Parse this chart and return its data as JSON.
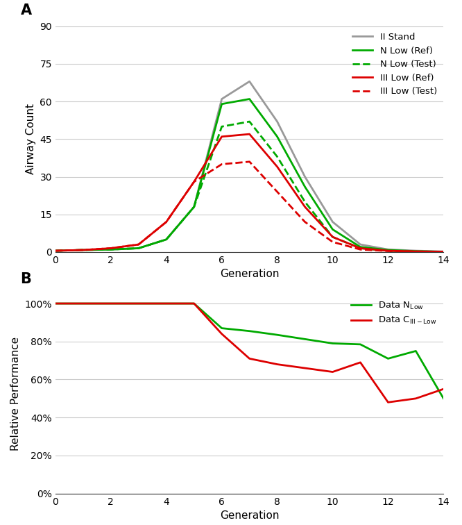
{
  "panel_A": {
    "title": "A",
    "ylabel": "Airway Count",
    "xlabel": "Generation",
    "xlim": [
      0,
      14
    ],
    "ylim": [
      0,
      90
    ],
    "yticks": [
      0,
      15,
      30,
      45,
      60,
      75,
      90
    ],
    "xticks": [
      0,
      2,
      4,
      6,
      8,
      10,
      12,
      14
    ],
    "series": {
      "II_Stand": {
        "x": [
          0,
          1,
          2,
          3,
          4,
          5,
          6,
          7,
          8,
          9,
          10,
          11,
          12,
          13,
          14
        ],
        "y": [
          0.5,
          0.8,
          1.0,
          1.5,
          5,
          18,
          61,
          68,
          52,
          30,
          12,
          3,
          1,
          0.5,
          0.2
        ],
        "color": "#999999",
        "linestyle": "solid",
        "linewidth": 2.0,
        "label": "II Stand"
      },
      "N_Low_Ref": {
        "x": [
          0,
          1,
          2,
          3,
          4,
          5,
          6,
          7,
          8,
          9,
          10,
          11,
          12,
          13,
          14
        ],
        "y": [
          0.5,
          0.8,
          1.0,
          1.5,
          5,
          18,
          59,
          61,
          46,
          26,
          9,
          2,
          0.8,
          0.3,
          0.1
        ],
        "color": "#00aa00",
        "linestyle": "solid",
        "linewidth": 2.0,
        "label": "N Low (Ref)"
      },
      "N_Low_Test": {
        "x": [
          0,
          1,
          2,
          3,
          4,
          5,
          6,
          7,
          8,
          9,
          10,
          11,
          12,
          13,
          14
        ],
        "y": [
          0.5,
          0.8,
          1.0,
          1.5,
          5,
          18,
          50,
          52,
          38,
          20,
          6,
          1.5,
          0.5,
          0.2,
          0.1
        ],
        "color": "#00aa00",
        "linestyle": "dashed",
        "linewidth": 2.0,
        "label": "N Low (Test)"
      },
      "III_Low_Ref": {
        "x": [
          0,
          1,
          2,
          3,
          4,
          5,
          6,
          7,
          8,
          9,
          10,
          11,
          12,
          13,
          14
        ],
        "y": [
          0.5,
          0.8,
          1.5,
          3,
          12,
          28,
          46,
          47,
          34,
          18,
          6,
          1.5,
          0.5,
          0.2,
          0.1
        ],
        "color": "#dd0000",
        "linestyle": "solid",
        "linewidth": 2.0,
        "label": "III Low (Ref)"
      },
      "III_Low_Test": {
        "x": [
          0,
          1,
          2,
          3,
          4,
          5,
          6,
          7,
          8,
          9,
          10,
          11,
          12,
          13,
          14
        ],
        "y": [
          0.5,
          0.8,
          1.5,
          3,
          12,
          28,
          35,
          36,
          24,
          12,
          4,
          1.0,
          0.4,
          0.2,
          0.1
        ],
        "color": "#dd0000",
        "linestyle": "dashed",
        "linewidth": 2.0,
        "label": "III Low (Test)"
      }
    }
  },
  "panel_B": {
    "title": "B",
    "ylabel": "Relative Performance",
    "xlabel": "Generation",
    "xlim": [
      0,
      14
    ],
    "ylim": [
      0,
      1.05
    ],
    "yticks": [
      0.0,
      0.2,
      0.4,
      0.6,
      0.8,
      1.0
    ],
    "ytick_labels": [
      "0%",
      "20%",
      "40%",
      "60%",
      "80%",
      "100%"
    ],
    "xticks": [
      0,
      2,
      4,
      6,
      8,
      10,
      12,
      14
    ],
    "series": {
      "Data_NLow": {
        "x": [
          0,
          5,
          6,
          7,
          8,
          10,
          11,
          12,
          13,
          14
        ],
        "y": [
          1.0,
          1.0,
          0.87,
          0.855,
          0.835,
          0.79,
          0.785,
          0.71,
          0.75,
          0.5
        ],
        "color": "#00aa00",
        "linestyle": "solid",
        "linewidth": 2.0,
        "label": "Data N"
      },
      "Data_CIII_Low": {
        "x": [
          0,
          5,
          6,
          7,
          8,
          10,
          11,
          12,
          13,
          14
        ],
        "y": [
          1.0,
          1.0,
          0.84,
          0.71,
          0.68,
          0.64,
          0.69,
          0.48,
          0.5,
          0.55
        ],
        "color": "#dd0000",
        "linestyle": "solid",
        "linewidth": 2.0,
        "label": "Data C"
      }
    }
  },
  "background_color": "#ffffff",
  "grid_color": "#cccccc",
  "label_fontsize": 11,
  "tick_fontsize": 10,
  "legend_fontsize": 9.5,
  "panel_label_fontsize": 15
}
